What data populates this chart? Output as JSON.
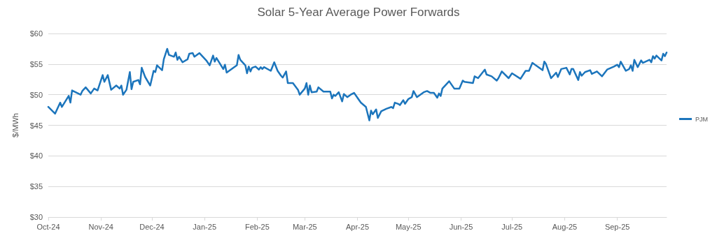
{
  "chart_data": {
    "type": "line",
    "title": "Solar 5-Year Average Power Forwards",
    "ylabel": "$/MWh",
    "x": [
      "2024-10-01",
      "2024-10-05",
      "2024-10-08",
      "2024-10-09",
      "2024-10-13",
      "2024-10-14",
      "2024-10-15",
      "2024-10-20",
      "2024-10-21",
      "2024-10-23",
      "2024-10-26",
      "2024-10-28",
      "2024-10-30",
      "2024-11-02",
      "2024-11-03",
      "2024-11-05",
      "2024-11-07",
      "2024-11-10",
      "2024-11-12",
      "2024-11-13",
      "2024-11-14",
      "2024-11-16",
      "2024-11-18",
      "2024-11-19",
      "2024-11-20",
      "2024-11-23",
      "2024-11-24",
      "2024-11-25",
      "2024-11-27",
      "2024-11-30",
      "2024-12-02",
      "2024-12-03",
      "2024-12-04",
      "2024-12-07",
      "2024-12-08",
      "2024-12-10",
      "2024-12-11",
      "2024-12-14",
      "2024-12-15",
      "2024-12-16",
      "2024-12-17",
      "2024-12-19",
      "2024-12-22",
      "2024-12-23",
      "2024-12-25",
      "2024-12-26",
      "2024-12-29",
      "2025-01-02",
      "2025-01-04",
      "2025-01-06",
      "2025-01-07",
      "2025-01-08",
      "2025-01-12",
      "2025-01-13",
      "2025-01-14",
      "2025-01-20",
      "2025-01-21",
      "2025-01-22",
      "2025-01-25",
      "2025-01-26",
      "2025-01-27",
      "2025-01-28",
      "2025-01-29",
      "2025-01-31",
      "2025-02-02",
      "2025-02-03",
      "2025-02-04",
      "2025-02-05",
      "2025-02-09",
      "2025-02-11",
      "2025-02-13",
      "2025-02-15",
      "2025-02-16",
      "2025-02-18",
      "2025-02-19",
      "2025-02-22",
      "2025-02-25",
      "2025-02-26",
      "2025-03-01",
      "2025-03-02",
      "2025-03-03",
      "2025-03-04",
      "2025-03-05",
      "2025-03-08",
      "2025-03-09",
      "2025-03-12",
      "2025-03-16",
      "2025-03-17",
      "2025-03-18",
      "2025-03-19",
      "2025-03-21",
      "2025-03-23",
      "2025-03-24",
      "2025-03-26",
      "2025-03-28",
      "2025-03-30",
      "2025-04-03",
      "2025-04-06",
      "2025-04-08",
      "2025-04-09",
      "2025-04-10",
      "2025-04-12",
      "2025-04-13",
      "2025-04-15",
      "2025-04-18",
      "2025-04-21",
      "2025-04-22",
      "2025-04-23",
      "2025-04-25",
      "2025-04-26",
      "2025-04-28",
      "2025-04-29",
      "2025-05-01",
      "2025-05-03",
      "2025-05-04",
      "2025-05-06",
      "2025-05-10",
      "2025-05-12",
      "2025-05-14",
      "2025-05-16",
      "2025-05-18",
      "2025-05-19",
      "2025-05-20",
      "2025-05-21",
      "2025-05-25",
      "2025-05-28",
      "2025-05-31",
      "2025-06-02",
      "2025-06-03",
      "2025-06-08",
      "2025-06-09",
      "2025-06-11",
      "2025-06-15",
      "2025-06-16",
      "2025-06-19",
      "2025-06-22",
      "2025-06-23",
      "2025-06-25",
      "2025-06-29",
      "2025-07-01",
      "2025-07-06",
      "2025-07-09",
      "2025-07-11",
      "2025-07-13",
      "2025-07-17",
      "2025-07-19",
      "2025-07-20",
      "2025-07-21",
      "2025-07-24",
      "2025-07-27",
      "2025-07-28",
      "2025-07-30",
      "2025-08-02",
      "2025-08-04",
      "2025-08-05",
      "2025-08-06",
      "2025-08-09",
      "2025-08-10",
      "2025-08-11",
      "2025-08-13",
      "2025-08-16",
      "2025-08-17",
      "2025-08-20",
      "2025-08-23",
      "2025-08-26",
      "2025-08-30",
      "2025-09-01",
      "2025-09-02",
      "2025-09-03",
      "2025-09-06",
      "2025-09-08",
      "2025-09-09",
      "2025-09-10",
      "2025-09-11",
      "2025-09-13",
      "2025-09-15",
      "2025-09-16",
      "2025-09-20",
      "2025-09-21",
      "2025-09-22",
      "2025-09-23",
      "2025-09-24",
      "2025-09-27",
      "2025-09-28",
      "2025-09-29",
      "2025-09-30"
    ],
    "series": [
      {
        "name": "PJM",
        "color": "#1c75bc",
        "values": [
          48.0,
          46.9,
          48.7,
          48.0,
          49.8,
          48.7,
          50.7,
          50.0,
          50.6,
          51.2,
          50.2,
          51.0,
          50.7,
          53.2,
          52.1,
          53.2,
          50.8,
          51.5,
          51.0,
          51.5,
          50.0,
          50.8,
          53.7,
          50.9,
          52.1,
          52.4,
          51.7,
          54.4,
          52.9,
          51.5,
          53.9,
          53.7,
          54.8,
          54.0,
          55.8,
          57.5,
          56.5,
          56.2,
          56.9,
          55.7,
          56.2,
          55.3,
          55.8,
          56.7,
          56.8,
          56.2,
          56.8,
          55.6,
          54.8,
          56.4,
          55.4,
          56.0,
          54.2,
          54.9,
          53.6,
          54.8,
          56.5,
          55.7,
          54.8,
          53.5,
          54.6,
          53.8,
          54.4,
          54.6,
          54.1,
          54.5,
          54.2,
          54.5,
          53.9,
          55.3,
          53.9,
          53.1,
          52.8,
          53.8,
          51.9,
          51.9,
          50.8,
          50.0,
          51.0,
          51.9,
          50.0,
          51.5,
          50.4,
          50.5,
          51.2,
          50.5,
          50.5,
          49.4,
          50.0,
          49.8,
          50.4,
          48.9,
          50.1,
          49.6,
          50.0,
          50.3,
          48.7,
          48.0,
          45.8,
          47.4,
          46.8,
          47.6,
          46.2,
          47.3,
          47.7,
          48.0,
          47.8,
          48.7,
          48.5,
          48.3,
          49.1,
          48.5,
          49.3,
          49.6,
          50.6,
          49.6,
          50.4,
          50.6,
          50.3,
          50.3,
          49.5,
          50.2,
          49.8,
          51.0,
          52.2,
          51.0,
          51.0,
          52.3,
          52.1,
          51.9,
          53.0,
          52.7,
          54.1,
          53.3,
          53.0,
          52.3,
          52.7,
          53.8,
          52.7,
          53.5,
          52.6,
          53.9,
          53.9,
          55.2,
          54.4,
          54.0,
          55.4,
          55.0,
          52.7,
          53.6,
          52.9,
          54.2,
          54.4,
          53.3,
          54.2,
          54.2,
          52.4,
          53.7,
          53.1,
          53.7,
          54.0,
          53.4,
          53.8,
          53.0,
          54.1,
          54.6,
          54.9,
          54.5,
          55.4,
          53.9,
          54.2,
          54.8,
          53.9,
          55.7,
          54.5,
          55.6,
          55.2,
          55.7,
          55.3,
          56.3,
          55.9,
          56.4,
          55.6,
          56.7,
          56.3,
          56.9
        ]
      }
    ],
    "xlim": [
      "2024-10-01",
      "2025-09-30"
    ],
    "xticks": [
      {
        "value": "2024-10-01",
        "label": "Oct-24"
      },
      {
        "value": "2024-11-01",
        "label": "Nov-24"
      },
      {
        "value": "2024-12-01",
        "label": "Dec-24"
      },
      {
        "value": "2025-01-01",
        "label": "Jan-25"
      },
      {
        "value": "2025-02-01",
        "label": "Feb-25"
      },
      {
        "value": "2025-03-01",
        "label": "Mar-25"
      },
      {
        "value": "2025-04-01",
        "label": "Apr-25"
      },
      {
        "value": "2025-05-01",
        "label": "May-25"
      },
      {
        "value": "2025-06-01",
        "label": "Jun-25"
      },
      {
        "value": "2025-07-01",
        "label": "Jul-25"
      },
      {
        "value": "2025-08-01",
        "label": "Aug-25"
      },
      {
        "value": "2025-09-01",
        "label": "Sep-25"
      }
    ],
    "ylim": [
      30,
      60
    ],
    "yticks": [
      {
        "value": 30,
        "label": "$30"
      },
      {
        "value": 35,
        "label": "$35"
      },
      {
        "value": 40,
        "label": "$40"
      },
      {
        "value": 45,
        "label": "$45"
      },
      {
        "value": 50,
        "label": "$50"
      },
      {
        "value": 55,
        "label": "$55"
      },
      {
        "value": 60,
        "label": "$60"
      }
    ],
    "grid": "y",
    "legend": "right",
    "marker": "none",
    "line_style": "solid"
  }
}
